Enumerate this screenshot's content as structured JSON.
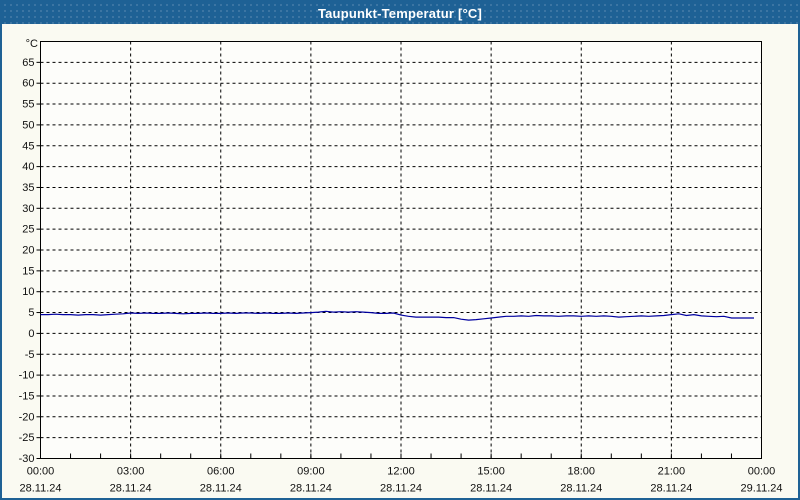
{
  "window": {
    "title": "Taupunkt-Temperatur [°C]",
    "titlebar_color": "#1e6195",
    "border_color": "#1e6195",
    "background_color": "#fafaf2",
    "plot_background_color": "#fdfdfa"
  },
  "chart_data": {
    "type": "line",
    "title": "Taupunkt-Temperatur [°C]",
    "ylabel": "°C",
    "xlabel": "",
    "ylim": [
      -30,
      70
    ],
    "xlim_hours": [
      0,
      24
    ],
    "grid": "dashed",
    "legend": "none",
    "line_color": "#0000a0",
    "grid_color": "#000000",
    "ytick_labels": [
      65,
      60,
      55,
      50,
      45,
      40,
      35,
      30,
      25,
      20,
      15,
      10,
      5,
      0,
      -5,
      -10,
      -15,
      -20,
      -25,
      -30
    ],
    "xticks": [
      {
        "hour": 0,
        "time": "00:00",
        "date": "28.11.24"
      },
      {
        "hour": 3,
        "time": "03:00",
        "date": "28.11.24"
      },
      {
        "hour": 6,
        "time": "06:00",
        "date": "28.11.24"
      },
      {
        "hour": 9,
        "time": "09:00",
        "date": "28.11.24"
      },
      {
        "hour": 12,
        "time": "12:00",
        "date": "28.11.24"
      },
      {
        "hour": 15,
        "time": "15:00",
        "date": "28.11.24"
      },
      {
        "hour": 18,
        "time": "18:00",
        "date": "28.11.24"
      },
      {
        "hour": 21,
        "time": "21:00",
        "date": "28.11.24"
      },
      {
        "hour": 24,
        "time": "00:00",
        "date": "29.11.24"
      }
    ],
    "minor_xtick_every_hours": 1,
    "series": [
      {
        "name": "Taupunkt-Temperatur",
        "x_start_hour": 0,
        "x_step_hours": 0.25,
        "values": [
          4.5,
          4.5,
          4.6,
          4.5,
          4.5,
          4.4,
          4.5,
          4.5,
          4.4,
          4.5,
          4.6,
          4.7,
          4.9,
          4.8,
          4.9,
          4.8,
          4.8,
          4.9,
          4.8,
          4.7,
          4.8,
          4.8,
          4.9,
          4.8,
          4.8,
          4.9,
          4.8,
          4.9,
          4.9,
          4.8,
          4.9,
          4.8,
          4.8,
          4.9,
          4.8,
          4.9,
          5.0,
          5.1,
          5.3,
          5.1,
          5.2,
          5.1,
          5.2,
          5.1,
          5.0,
          4.8,
          4.8,
          4.9,
          4.4,
          4.1,
          3.9,
          3.9,
          3.9,
          3.9,
          3.8,
          3.8,
          3.4,
          3.2,
          3.3,
          3.5,
          3.7,
          3.9,
          4.1,
          4.1,
          4.2,
          4.1,
          4.3,
          4.2,
          4.2,
          4.1,
          4.2,
          4.2,
          4.1,
          4.2,
          4.1,
          4.2,
          4.1,
          3.9,
          4.0,
          4.1,
          4.2,
          4.1,
          4.2,
          4.3,
          4.5,
          4.7,
          4.3,
          4.5,
          4.2,
          4.1,
          4.0,
          4.1,
          3.7,
          3.7,
          3.7,
          3.7
        ]
      }
    ]
  }
}
